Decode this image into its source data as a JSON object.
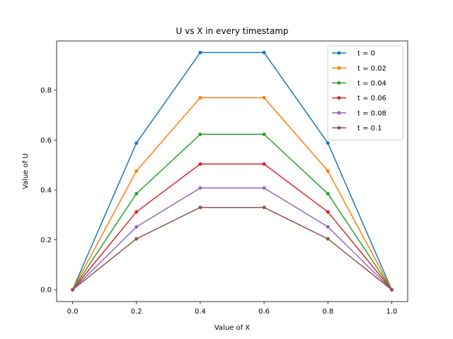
{
  "chart_data": {
    "type": "line",
    "title": "U vs X in every timestamp",
    "xlabel": "Value of X",
    "ylabel": "Value of U",
    "xlim": [
      -0.05,
      1.05
    ],
    "ylim": [
      -0.0475,
      0.9975
    ],
    "xticks": [
      0.0,
      0.2,
      0.4,
      0.6,
      0.8,
      1.0
    ],
    "xtick_labels": [
      "0.0",
      "0.2",
      "0.4",
      "0.6",
      "0.8",
      "1.0"
    ],
    "yticks": [
      0.0,
      0.2,
      0.4,
      0.6,
      0.8
    ],
    "ytick_labels": [
      "0.0",
      "0.2",
      "0.4",
      "0.6",
      "0.8"
    ],
    "grid": false,
    "legend_position": "top-right",
    "x": [
      0.0,
      0.2,
      0.4,
      0.6,
      0.8,
      1.0
    ],
    "series": [
      {
        "name": "t = 0",
        "color": "#1f77b4",
        "values": [
          0.0,
          0.588,
          0.951,
          0.951,
          0.588,
          0.0
        ]
      },
      {
        "name": "t = 0.02",
        "color": "#ff7f0e",
        "values": [
          0.0,
          0.476,
          0.77,
          0.77,
          0.476,
          0.0
        ]
      },
      {
        "name": "t = 0.04",
        "color": "#2ca02c",
        "values": [
          0.0,
          0.385,
          0.623,
          0.623,
          0.385,
          0.0
        ]
      },
      {
        "name": "t = 0.06",
        "color": "#d62728",
        "values": [
          0.0,
          0.312,
          0.504,
          0.504,
          0.312,
          0.0
        ]
      },
      {
        "name": "t = 0.08",
        "color": "#9467bd",
        "values": [
          0.0,
          0.252,
          0.408,
          0.408,
          0.252,
          0.0
        ]
      },
      {
        "name": "t = 0.1",
        "color": "#8c564b",
        "values": [
          0.0,
          0.204,
          0.33,
          0.33,
          0.204,
          0.0
        ]
      }
    ]
  }
}
